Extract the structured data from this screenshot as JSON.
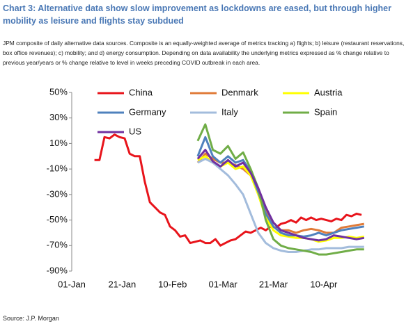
{
  "chart_data": {
    "type": "line",
    "title": "Chart 3: Alternative data show slow improvement as lockdowns are eased, but through higher mobility as leisure and flights stay subdued",
    "subtitle": "JPM composite of daily alternative data sources. Composite is an equally-weighted average of metrics tracking a) flights; b) leisure (restaurant reservations, box office revenues); c) mobility; and d) energy consumption. Depending on data availability the underlying metrics expressed as % change relative to previous year/years or % change relative to level in weeks preceding COVID outbreak in each area.",
    "source": "Source: J.P. Morgan",
    "xlim": [
      0,
      118
    ],
    "xticks": [
      {
        "value": 0,
        "label": "01-Jan"
      },
      {
        "value": 20,
        "label": "21-Jan"
      },
      {
        "value": 40,
        "label": "10-Feb"
      },
      {
        "value": 60,
        "label": "01-Mar"
      },
      {
        "value": 80,
        "label": "21-Mar"
      },
      {
        "value": 100,
        "label": "10-Apr"
      }
    ],
    "ylim": [
      -90,
      50
    ],
    "yticks": [
      {
        "value": 50,
        "label": "50%"
      },
      {
        "value": 30,
        "label": "30%"
      },
      {
        "value": 10,
        "label": "10%"
      },
      {
        "value": -10,
        "label": "-10%"
      },
      {
        "value": -30,
        "label": "-30%"
      },
      {
        "value": -50,
        "label": "-50%"
      },
      {
        "value": -70,
        "label": "-70%"
      },
      {
        "value": -90,
        "label": "-90%"
      }
    ],
    "series": [
      {
        "name": "China",
        "color": "#e8141b",
        "x": [
          9,
          11,
          13,
          15,
          17,
          19,
          21,
          23,
          25,
          27,
          29,
          31,
          33,
          35,
          37,
          39,
          41,
          43,
          45,
          47,
          49,
          51,
          53,
          55,
          57,
          59,
          61,
          63,
          65,
          67,
          69,
          71,
          73,
          75,
          77,
          79,
          81,
          83,
          85,
          87,
          89,
          91,
          93,
          95,
          97,
          99,
          101,
          103,
          105,
          107,
          109,
          111,
          113,
          115
        ],
        "values": [
          -3,
          -3,
          15,
          14,
          17,
          15,
          14,
          2,
          0,
          0,
          -20,
          -36,
          -40,
          -44,
          -46,
          -55,
          -58,
          -63,
          -62,
          -68,
          -67,
          -66,
          -68,
          -68,
          -65,
          -70,
          -68,
          -66,
          -65,
          -62,
          -59,
          -60,
          -58,
          -56,
          -58,
          -55,
          -56,
          -53,
          -52,
          -50,
          -52,
          -48,
          -50,
          -48,
          -50,
          -49,
          -50,
          -51,
          -49,
          -50,
          -46,
          -47,
          -45,
          -46
        ]
      },
      {
        "name": "Denmark",
        "color": "#e07b39",
        "x": [
          50,
          53,
          56,
          59,
          62,
          65,
          68,
          71,
          74,
          77,
          80,
          83,
          86,
          89,
          92,
          95,
          98,
          101,
          104,
          107,
          110,
          113,
          116
        ],
        "values": [
          -5,
          2,
          -2,
          -5,
          -5,
          -7,
          -10,
          -15,
          -28,
          -42,
          -52,
          -58,
          -58,
          -60,
          -58,
          -57,
          -58,
          -60,
          -60,
          -56,
          -55,
          -54,
          -53
        ]
      },
      {
        "name": "Austria",
        "color": "#ffff00",
        "x": [
          50,
          53,
          56,
          59,
          62,
          65,
          68,
          71,
          74,
          77,
          80,
          83,
          86,
          89,
          92,
          95,
          98,
          101,
          104,
          107,
          110,
          113,
          116
        ],
        "values": [
          -3,
          0,
          -5,
          -8,
          -5,
          -10,
          -8,
          -15,
          -30,
          -48,
          -58,
          -62,
          -63,
          -64,
          -64,
          -65,
          -67,
          -66,
          -64,
          -64,
          -63,
          -64,
          -63
        ]
      },
      {
        "name": "Germany",
        "color": "#4f81bd",
        "x": [
          50,
          53,
          56,
          59,
          62,
          65,
          68,
          71,
          74,
          77,
          80,
          83,
          86,
          89,
          92,
          95,
          98,
          101,
          104,
          107,
          110,
          113,
          116
        ],
        "values": [
          0,
          15,
          0,
          -5,
          0,
          -5,
          -3,
          -12,
          -28,
          -45,
          -55,
          -60,
          -62,
          -62,
          -63,
          -62,
          -60,
          -62,
          -60,
          -58,
          -57,
          -56,
          -55
        ]
      },
      {
        "name": "Italy",
        "color": "#a3bcdc",
        "x": [
          50,
          53,
          56,
          59,
          62,
          65,
          68,
          71,
          74,
          77,
          80,
          83,
          86,
          89,
          92,
          95,
          98,
          101,
          104,
          107,
          110,
          113,
          116
        ],
        "values": [
          -5,
          -2,
          -5,
          -10,
          -15,
          -22,
          -30,
          -45,
          -60,
          -68,
          -72,
          -74,
          -75,
          -75,
          -74,
          -73,
          -73,
          -72,
          -72,
          -72,
          -71,
          -71,
          -71
        ]
      },
      {
        "name": "Spain",
        "color": "#70ad47",
        "x": [
          50,
          53,
          56,
          59,
          62,
          65,
          68,
          71,
          74,
          77,
          80,
          83,
          86,
          89,
          92,
          95,
          98,
          101,
          104,
          107,
          110,
          113,
          116
        ],
        "values": [
          12,
          25,
          5,
          2,
          8,
          -2,
          3,
          -10,
          -25,
          -50,
          -65,
          -70,
          -72,
          -73,
          -74,
          -75,
          -77,
          -77,
          -76,
          -75,
          -74,
          -73,
          -73
        ]
      },
      {
        "name": "US",
        "color": "#7030a0",
        "x": [
          50,
          53,
          56,
          59,
          62,
          65,
          68,
          71,
          74,
          77,
          80,
          83,
          86,
          89,
          92,
          95,
          98,
          101,
          104,
          107,
          110,
          113,
          116
        ],
        "values": [
          -2,
          5,
          -4,
          -8,
          -3,
          -8,
          -5,
          -13,
          -25,
          -40,
          -52,
          -58,
          -60,
          -62,
          -64,
          -65,
          -66,
          -65,
          -62,
          -63,
          -64,
          -65,
          -64
        ]
      }
    ]
  }
}
